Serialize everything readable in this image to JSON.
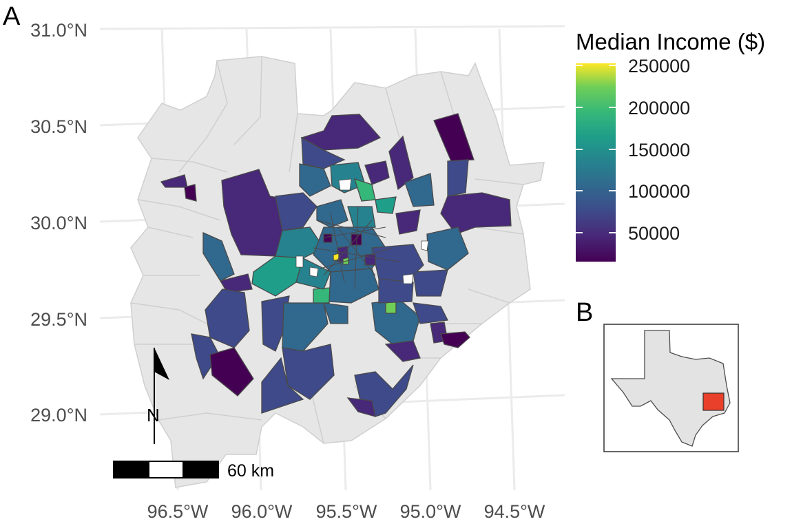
{
  "panels": {
    "main_label": "A",
    "inset_label": "B"
  },
  "axes": {
    "y_ticks": [
      "31.0°N",
      "30.5°N",
      "30.0°N",
      "29.5°N",
      "29.0°N"
    ],
    "x_ticks": [
      "96.5°W",
      "96.0°W",
      "95.5°W",
      "95.0°W",
      "94.5°W"
    ]
  },
  "legend": {
    "title": "Median Income ($)",
    "labels": [
      "250000",
      "200000",
      "150000",
      "100000",
      "50000"
    ],
    "range": [
      15000,
      250000
    ],
    "colormap": "viridis"
  },
  "scale_bar": {
    "label": "60 km"
  },
  "north_arrow": {
    "label": "N"
  },
  "colors": {
    "background_county": "#e6e6e6",
    "county_border": "#c8c8c8",
    "tract_border": "#4a4a4a",
    "gridline": "#ebebeb",
    "inset_highlight": "#e8402a",
    "inset_state": "#e3e3e3"
  }
}
